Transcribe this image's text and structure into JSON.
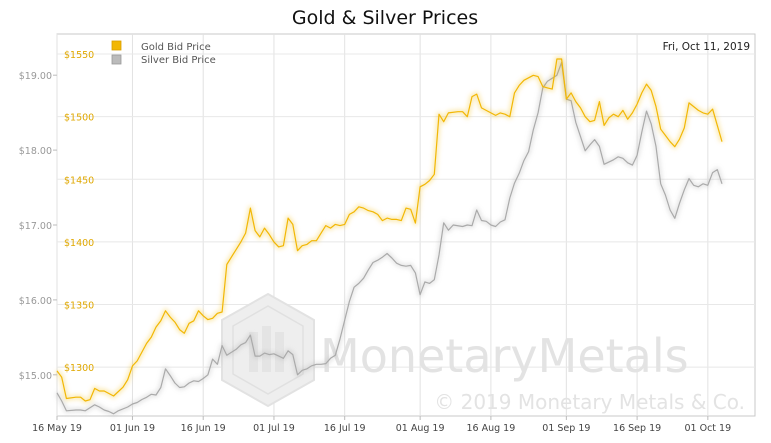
{
  "chart_data": {
    "type": "line",
    "title": "Gold & Silver Prices",
    "date_label": "Fri, Oct 11, 2019",
    "watermark": {
      "brand": "MonetaryMetals",
      "copyright": "© 2019 Monetary Metals & Co."
    },
    "x_ticks": [
      "16 May 19",
      "01 Jun 19",
      "16 Jun 19",
      "01 Jul 19",
      "16 Jul 19",
      "01 Aug 19",
      "16 Aug 19",
      "01 Sep 19",
      "16 Sep 19",
      "01 Oct 19"
    ],
    "x_tick_days": [
      0,
      16,
      31,
      46,
      61,
      77,
      92,
      108,
      123,
      138
    ],
    "xlim_days": [
      0,
      148
    ],
    "left_axis": {
      "series": "Silver Bid Price",
      "ylim": [
        14.45,
        19.55
      ],
      "ticks": [
        15.0,
        16.0,
        17.0,
        18.0,
        19.0
      ],
      "tick_labels": [
        "$15.00",
        "$16.00",
        "$17.00",
        "$18.00",
        "$19.00"
      ]
    },
    "right_axis": {
      "series": "Gold Bid Price",
      "ylim": [
        1261,
        1566
      ],
      "ticks": [
        1300,
        1350,
        1400,
        1450,
        1500,
        1550
      ],
      "tick_labels": [
        "$1300",
        "$1350",
        "$1400",
        "$1450",
        "$1500",
        "$1550"
      ]
    },
    "series": [
      {
        "name": "Gold Bid Price",
        "color": "#f2b705",
        "axis": "right",
        "points": [
          [
            0,
            1297
          ],
          [
            1,
            1292
          ],
          [
            2,
            1275
          ],
          [
            4,
            1276
          ],
          [
            5,
            1276
          ],
          [
            6,
            1273
          ],
          [
            7,
            1274
          ],
          [
            8,
            1283
          ],
          [
            9,
            1281
          ],
          [
            10,
            1281
          ],
          [
            11,
            1279
          ],
          [
            12,
            1277
          ],
          [
            14,
            1284
          ],
          [
            15,
            1290
          ],
          [
            16,
            1301
          ],
          [
            17,
            1305
          ],
          [
            18,
            1312
          ],
          [
            19,
            1319
          ],
          [
            20,
            1324
          ],
          [
            21,
            1332
          ],
          [
            22,
            1337
          ],
          [
            23,
            1345
          ],
          [
            24,
            1340
          ],
          [
            25,
            1336
          ],
          [
            26,
            1330
          ],
          [
            27,
            1327
          ],
          [
            28,
            1335
          ],
          [
            29,
            1337
          ],
          [
            30,
            1345
          ],
          [
            31,
            1341
          ],
          [
            32,
            1338
          ],
          [
            33,
            1339
          ],
          [
            34,
            1343
          ],
          [
            35,
            1344
          ],
          [
            36,
            1382
          ],
          [
            37,
            1388
          ],
          [
            38,
            1394
          ],
          [
            39,
            1400
          ],
          [
            40,
            1407
          ],
          [
            41,
            1427
          ],
          [
            42,
            1409
          ],
          [
            43,
            1404
          ],
          [
            44,
            1411
          ],
          [
            45,
            1406
          ],
          [
            46,
            1400
          ],
          [
            47,
            1396
          ],
          [
            48,
            1397
          ],
          [
            49,
            1419
          ],
          [
            50,
            1414
          ],
          [
            51,
            1393
          ],
          [
            52,
            1397
          ],
          [
            53,
            1398
          ],
          [
            54,
            1401
          ],
          [
            55,
            1401
          ],
          [
            56,
            1407
          ],
          [
            57,
            1413
          ],
          [
            58,
            1411
          ],
          [
            59,
            1414
          ],
          [
            60,
            1413
          ],
          [
            61,
            1414
          ],
          [
            62,
            1422
          ],
          [
            63,
            1424
          ],
          [
            64,
            1428
          ],
          [
            65,
            1427
          ],
          [
            66,
            1425
          ],
          [
            67,
            1424
          ],
          [
            68,
            1422
          ],
          [
            69,
            1417
          ],
          [
            70,
            1419
          ],
          [
            71,
            1418
          ],
          [
            72,
            1418
          ],
          [
            73,
            1417
          ],
          [
            74,
            1427
          ],
          [
            75,
            1426
          ],
          [
            76,
            1415
          ],
          [
            77,
            1444
          ],
          [
            78,
            1446
          ],
          [
            79,
            1449
          ],
          [
            80,
            1454
          ],
          [
            81,
            1502
          ],
          [
            82,
            1496
          ],
          [
            83,
            1503
          ],
          [
            85,
            1504
          ],
          [
            86,
            1504
          ],
          [
            87,
            1500
          ],
          [
            88,
            1516
          ],
          [
            89,
            1518
          ],
          [
            90,
            1507
          ],
          [
            92,
            1503
          ],
          [
            93,
            1501
          ],
          [
            94,
            1503
          ],
          [
            95,
            1502
          ],
          [
            96,
            1500
          ],
          [
            97,
            1519
          ],
          [
            98,
            1525
          ],
          [
            99,
            1529
          ],
          [
            100,
            1531
          ],
          [
            101,
            1533
          ],
          [
            102,
            1532
          ],
          [
            103,
            1524
          ],
          [
            104,
            1523
          ],
          [
            105,
            1522
          ],
          [
            106,
            1546
          ],
          [
            107,
            1546
          ],
          [
            108,
            1514
          ],
          [
            109,
            1519
          ],
          [
            110,
            1512
          ],
          [
            111,
            1507
          ],
          [
            112,
            1500
          ],
          [
            113,
            1496
          ],
          [
            114,
            1497
          ],
          [
            115,
            1512
          ],
          [
            116,
            1493
          ],
          [
            117,
            1499
          ],
          [
            118,
            1502
          ],
          [
            119,
            1500
          ],
          [
            120,
            1505
          ],
          [
            121,
            1498
          ],
          [
            122,
            1503
          ],
          [
            123,
            1510
          ],
          [
            124,
            1519
          ],
          [
            125,
            1526
          ],
          [
            126,
            1521
          ],
          [
            127,
            1508
          ],
          [
            128,
            1490
          ],
          [
            129,
            1485
          ],
          [
            130,
            1480
          ],
          [
            131,
            1476
          ],
          [
            132,
            1482
          ],
          [
            133,
            1491
          ],
          [
            134,
            1511
          ],
          [
            135,
            1508
          ],
          [
            136,
            1505
          ],
          [
            137,
            1503
          ],
          [
            138,
            1502
          ],
          [
            139,
            1506
          ],
          [
            140,
            1493
          ],
          [
            141,
            1480
          ]
        ]
      },
      {
        "name": "Silver Bid Price",
        "color": "#aaaaaa",
        "axis": "left",
        "points": [
          [
            0,
            14.76
          ],
          [
            1,
            14.65
          ],
          [
            2,
            14.52
          ],
          [
            4,
            14.53
          ],
          [
            5,
            14.53
          ],
          [
            6,
            14.52
          ],
          [
            7,
            14.56
          ],
          [
            8,
            14.6
          ],
          [
            9,
            14.57
          ],
          [
            10,
            14.53
          ],
          [
            11,
            14.51
          ],
          [
            12,
            14.48
          ],
          [
            13,
            14.52
          ],
          [
            15,
            14.57
          ],
          [
            16,
            14.61
          ],
          [
            17,
            14.63
          ],
          [
            18,
            14.67
          ],
          [
            19,
            14.7
          ],
          [
            20,
            14.74
          ],
          [
            21,
            14.73
          ],
          [
            22,
            14.83
          ],
          [
            23,
            15.08
          ],
          [
            24,
            14.99
          ],
          [
            25,
            14.89
          ],
          [
            26,
            14.83
          ],
          [
            27,
            14.84
          ],
          [
            28,
            14.89
          ],
          [
            29,
            14.92
          ],
          [
            30,
            14.91
          ],
          [
            31,
            14.95
          ],
          [
            32,
            15.0
          ],
          [
            33,
            15.21
          ],
          [
            34,
            15.14
          ],
          [
            35,
            15.39
          ],
          [
            36,
            15.26
          ],
          [
            37,
            15.3
          ],
          [
            38,
            15.34
          ],
          [
            39,
            15.4
          ],
          [
            40,
            15.43
          ],
          [
            41,
            15.53
          ],
          [
            42,
            15.25
          ],
          [
            43,
            15.25
          ],
          [
            44,
            15.29
          ],
          [
            45,
            15.27
          ],
          [
            46,
            15.28
          ],
          [
            47,
            15.25
          ],
          [
            48,
            15.22
          ],
          [
            49,
            15.32
          ],
          [
            50,
            15.27
          ],
          [
            51,
            15.0
          ],
          [
            52,
            15.06
          ],
          [
            53,
            15.08
          ],
          [
            54,
            15.12
          ],
          [
            55,
            15.14
          ],
          [
            56,
            15.14
          ],
          [
            57,
            15.15
          ],
          [
            58,
            15.22
          ],
          [
            59,
            15.26
          ],
          [
            60,
            15.48
          ],
          [
            61,
            15.73
          ],
          [
            62,
            15.98
          ],
          [
            63,
            16.17
          ],
          [
            64,
            16.22
          ],
          [
            65,
            16.29
          ],
          [
            66,
            16.4
          ],
          [
            67,
            16.5
          ],
          [
            68,
            16.53
          ],
          [
            69,
            16.57
          ],
          [
            70,
            16.62
          ],
          [
            71,
            16.56
          ],
          [
            72,
            16.49
          ],
          [
            73,
            16.46
          ],
          [
            74,
            16.45
          ],
          [
            75,
            16.46
          ],
          [
            76,
            16.36
          ],
          [
            77,
            16.07
          ],
          [
            78,
            16.24
          ],
          [
            79,
            16.22
          ],
          [
            80,
            16.27
          ],
          [
            81,
            16.6
          ],
          [
            82,
            17.03
          ],
          [
            83,
            16.93
          ],
          [
            84,
            17.0
          ],
          [
            86,
            16.98
          ],
          [
            87,
            17.0
          ],
          [
            88,
            16.99
          ],
          [
            89,
            17.2
          ],
          [
            90,
            17.06
          ],
          [
            91,
            17.05
          ],
          [
            92,
            17.0
          ],
          [
            93,
            16.98
          ],
          [
            94,
            17.04
          ],
          [
            95,
            17.07
          ],
          [
            96,
            17.36
          ],
          [
            97,
            17.56
          ],
          [
            98,
            17.69
          ],
          [
            99,
            17.86
          ],
          [
            100,
            17.98
          ],
          [
            101,
            18.27
          ],
          [
            102,
            18.5
          ],
          [
            103,
            18.83
          ],
          [
            104,
            18.92
          ],
          [
            105,
            18.96
          ],
          [
            106,
            19.0
          ],
          [
            107,
            19.17
          ],
          [
            108,
            18.68
          ],
          [
            109,
            18.66
          ],
          [
            110,
            18.37
          ],
          [
            111,
            18.18
          ],
          [
            112,
            17.99
          ],
          [
            113,
            18.07
          ],
          [
            114,
            18.14
          ],
          [
            115,
            18.05
          ],
          [
            116,
            17.81
          ],
          [
            117,
            17.84
          ],
          [
            118,
            17.87
          ],
          [
            119,
            17.91
          ],
          [
            120,
            17.89
          ],
          [
            121,
            17.83
          ],
          [
            122,
            17.8
          ],
          [
            123,
            17.93
          ],
          [
            124,
            18.24
          ],
          [
            125,
            18.52
          ],
          [
            126,
            18.35
          ],
          [
            127,
            18.05
          ],
          [
            128,
            17.55
          ],
          [
            129,
            17.4
          ],
          [
            130,
            17.2
          ],
          [
            131,
            17.09
          ],
          [
            132,
            17.29
          ],
          [
            133,
            17.47
          ],
          [
            134,
            17.62
          ],
          [
            135,
            17.53
          ],
          [
            136,
            17.51
          ],
          [
            137,
            17.55
          ],
          [
            138,
            17.53
          ],
          [
            139,
            17.7
          ],
          [
            140,
            17.74
          ],
          [
            141,
            17.55
          ]
        ]
      }
    ],
    "grid": true,
    "legend": {
      "placement": "top-left",
      "entries": [
        "Gold Bid Price",
        "Silver Bid Price"
      ]
    }
  }
}
